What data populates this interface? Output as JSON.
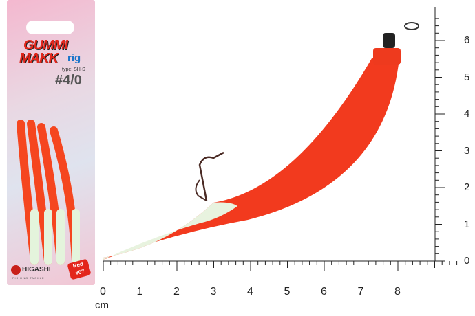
{
  "package": {
    "line1": "GUMMI",
    "line2": "MAKK",
    "suffix": "rig",
    "type": "type: SH-S",
    "size": "#4/0",
    "maker": "HIGASHI",
    "maker_sub": "FISHING TACKLE",
    "color_badge_1": "Red",
    "color_badge_2": "#07"
  },
  "ruler": {
    "unit": "cm",
    "x_labels": [
      "0",
      "1",
      "2",
      "3",
      "4",
      "5",
      "6",
      "7",
      "8"
    ],
    "y_labels": [
      "0",
      "1",
      "2",
      "3",
      "4",
      "5",
      "6"
    ]
  },
  "colors": {
    "lure": "#f23a1e",
    "glow": "#e8f3df",
    "pack": "#f0c4d6"
  }
}
